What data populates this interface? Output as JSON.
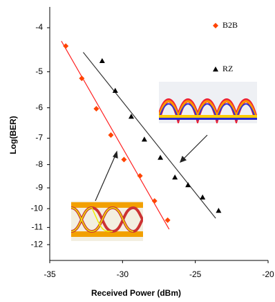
{
  "chart_data": {
    "type": "scatter",
    "x_label": "Received Power (dBm)",
    "y_label": "Log(BER)",
    "xlim": [
      -35,
      -20
    ],
    "xticks": [
      -35,
      -30,
      -25,
      -20
    ],
    "ylim": [
      -13,
      -3.6
    ],
    "yticks": [
      -4,
      -5,
      -6,
      -7,
      -8,
      -9,
      -10,
      -11,
      -12
    ],
    "yscale": "loglog",
    "series": [
      {
        "name": "B2B",
        "color": "#ff4400",
        "marker": "diamond",
        "x": [
          -33.9,
          -32.8,
          -31.8,
          -30.8,
          -29.9,
          -28.8,
          -27.8,
          -26.9
        ],
        "values": [
          -4.39,
          -5.17,
          -6.03,
          -6.89,
          -7.8,
          -8.47,
          -9.62,
          -10.6
        ]
      },
      {
        "name": "RZ",
        "color": "#000000",
        "marker": "triangle",
        "x": [
          -31.4,
          -30.5,
          -29.4,
          -28.5,
          -27.4,
          -26.4,
          -25.5,
          -24.5,
          -23.4
        ],
        "values": [
          -4.73,
          -5.5,
          -6.27,
          -7.04,
          -7.72,
          -8.53,
          -8.87,
          -9.44,
          -10.1
        ]
      }
    ],
    "fit_lines": [
      {
        "color": "#ff2020",
        "x": [
          -34.2,
          -26.8
        ],
        "values": [
          -4.28,
          -11.1
        ]
      },
      {
        "color": "#333333",
        "x": [
          -32.7,
          -23.6
        ],
        "values": [
          -4.53,
          -10.5
        ]
      }
    ]
  }
}
